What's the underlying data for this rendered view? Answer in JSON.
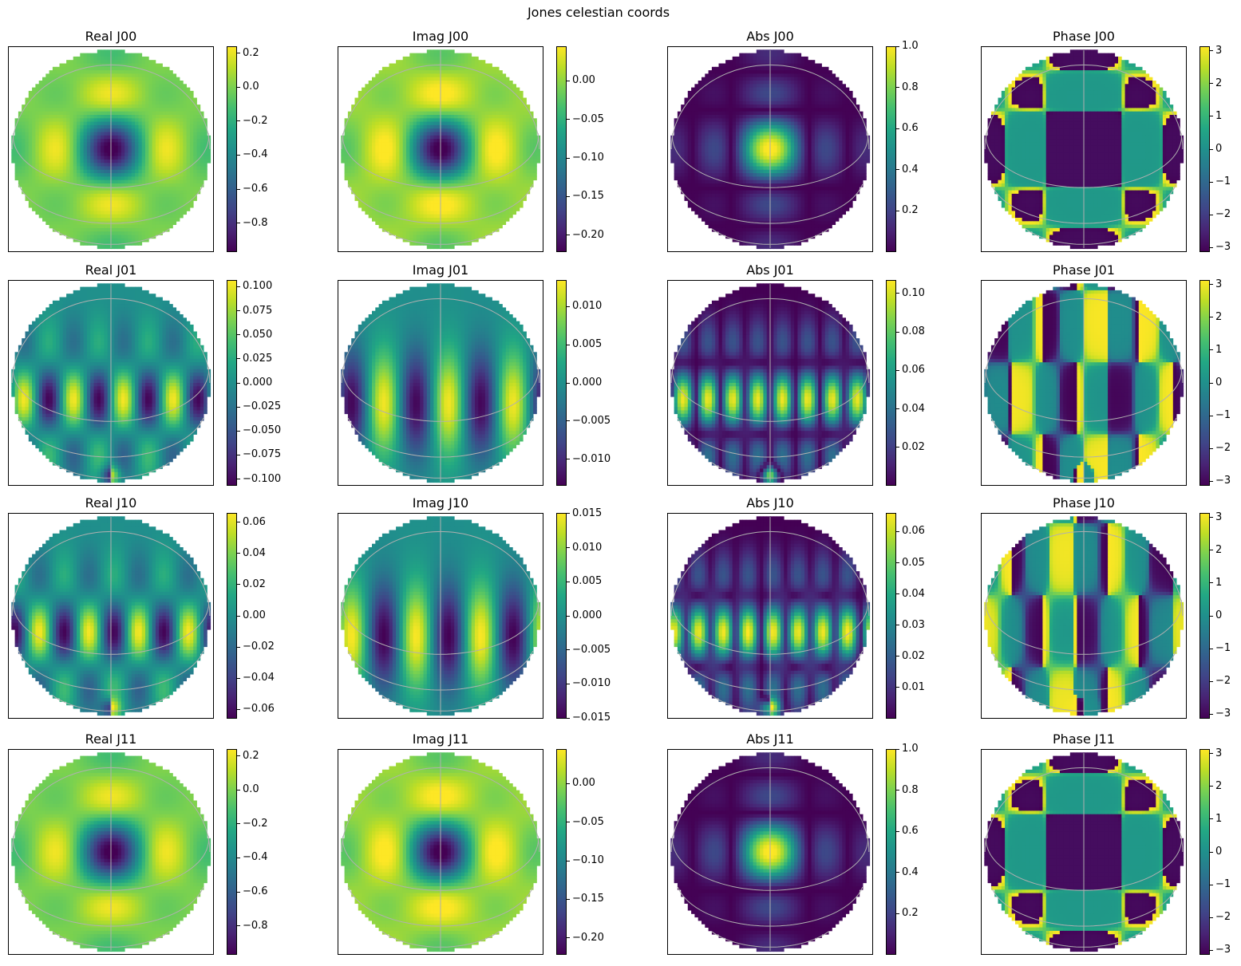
{
  "title": "Jones celestian coords",
  "colormap": "viridis",
  "grid_color": "#b0b0b0",
  "chart_data": [
    {
      "type": "heatmap",
      "title": "Real J00",
      "row": 0,
      "col": 0,
      "component": "real",
      "element": "J00",
      "clim": [
        -0.97,
        0.24
      ],
      "colorbar_ticks": [
        0.2,
        0.0,
        -0.2,
        -0.4,
        -0.6,
        -0.8
      ],
      "colorbar_labels": [
        "0.2",
        "0.0",
        "−0.2",
        "−0.4",
        "−0.6",
        "−0.8"
      ]
    },
    {
      "type": "heatmap",
      "title": "Imag J00",
      "row": 0,
      "col": 1,
      "component": "imag",
      "element": "J00",
      "clim": [
        -0.222,
        0.045
      ],
      "colorbar_ticks": [
        0.0,
        -0.05,
        -0.1,
        -0.15,
        -0.2
      ],
      "colorbar_labels": [
        "0.00",
        "−0.05",
        "−0.10",
        "−0.15",
        "−0.20"
      ]
    },
    {
      "type": "heatmap",
      "title": "Abs J00",
      "row": 0,
      "col": 2,
      "component": "abs",
      "element": "J00",
      "clim": [
        0.0,
        1.0
      ],
      "colorbar_ticks": [
        1.0,
        0.8,
        0.6,
        0.4,
        0.2
      ],
      "colorbar_labels": [
        "1.0",
        "0.8",
        "0.6",
        "0.4",
        "0.2"
      ]
    },
    {
      "type": "heatmap",
      "title": "Phase J00",
      "row": 0,
      "col": 3,
      "component": "phase",
      "element": "J00",
      "clim": [
        -3.14159,
        3.14159
      ],
      "colorbar_ticks": [
        3,
        2,
        1,
        0,
        -1,
        -2,
        -3
      ],
      "colorbar_labels": [
        "3",
        "2",
        "1",
        "0",
        "−1",
        "−2",
        "−3"
      ]
    },
    {
      "type": "heatmap",
      "title": "Real J01",
      "row": 1,
      "col": 0,
      "component": "real",
      "element": "J01",
      "clim": [
        -0.107,
        0.107
      ],
      "colorbar_ticks": [
        0.1,
        0.075,
        0.05,
        0.025,
        0.0,
        -0.025,
        -0.05,
        -0.075,
        -0.1
      ],
      "colorbar_labels": [
        "0.100",
        "0.075",
        "0.050",
        "0.025",
        "0.000",
        "−0.025",
        "−0.050",
        "−0.075",
        "−0.100"
      ]
    },
    {
      "type": "heatmap",
      "title": "Imag J01",
      "row": 1,
      "col": 1,
      "component": "imag",
      "element": "J01",
      "clim": [
        -0.0135,
        0.0135
      ],
      "colorbar_ticks": [
        0.01,
        0.005,
        0.0,
        -0.005,
        -0.01
      ],
      "colorbar_labels": [
        "0.010",
        "0.005",
        "0.000",
        "−0.005",
        "−0.010"
      ]
    },
    {
      "type": "heatmap",
      "title": "Abs J01",
      "row": 1,
      "col": 2,
      "component": "abs",
      "element": "J01",
      "clim": [
        0.0,
        0.107
      ],
      "colorbar_ticks": [
        0.1,
        0.08,
        0.06,
        0.04,
        0.02
      ],
      "colorbar_labels": [
        "0.10",
        "0.08",
        "0.06",
        "0.04",
        "0.02"
      ]
    },
    {
      "type": "heatmap",
      "title": "Phase J01",
      "row": 1,
      "col": 3,
      "component": "phase",
      "element": "J01",
      "clim": [
        -3.14159,
        3.14159
      ],
      "colorbar_ticks": [
        3,
        2,
        1,
        0,
        -1,
        -2,
        -3
      ],
      "colorbar_labels": [
        "3",
        "2",
        "1",
        "0",
        "−1",
        "−2",
        "−3"
      ]
    },
    {
      "type": "heatmap",
      "title": "Real J10",
      "row": 2,
      "col": 0,
      "component": "real",
      "element": "J10",
      "clim": [
        -0.066,
        0.066
      ],
      "colorbar_ticks": [
        0.06,
        0.04,
        0.02,
        0.0,
        -0.02,
        -0.04,
        -0.06
      ],
      "colorbar_labels": [
        "0.06",
        "0.04",
        "0.02",
        "0.00",
        "−0.02",
        "−0.04",
        "−0.06"
      ]
    },
    {
      "type": "heatmap",
      "title": "Imag J10",
      "row": 2,
      "col": 1,
      "component": "imag",
      "element": "J10",
      "clim": [
        -0.0151,
        0.0151
      ],
      "colorbar_ticks": [
        0.015,
        0.01,
        0.005,
        0.0,
        -0.005,
        -0.01,
        -0.015
      ],
      "colorbar_labels": [
        "0.015",
        "0.010",
        "0.005",
        "0.000",
        "−0.005",
        "−0.010",
        "−0.015"
      ]
    },
    {
      "type": "heatmap",
      "title": "Abs J10",
      "row": 2,
      "col": 2,
      "component": "abs",
      "element": "J10",
      "clim": [
        0.0,
        0.066
      ],
      "colorbar_ticks": [
        0.06,
        0.05,
        0.04,
        0.03,
        0.02,
        0.01
      ],
      "colorbar_labels": [
        "0.06",
        "0.05",
        "0.04",
        "0.03",
        "0.02",
        "0.01"
      ]
    },
    {
      "type": "heatmap",
      "title": "Phase J10",
      "row": 2,
      "col": 3,
      "component": "phase",
      "element": "J10",
      "clim": [
        -3.14159,
        3.14159
      ],
      "colorbar_ticks": [
        3,
        2,
        1,
        0,
        -1,
        -2,
        -3
      ],
      "colorbar_labels": [
        "3",
        "2",
        "1",
        "0",
        "−1",
        "−2",
        "−3"
      ]
    },
    {
      "type": "heatmap",
      "title": "Real J11",
      "row": 3,
      "col": 0,
      "component": "real",
      "element": "J11",
      "clim": [
        -0.97,
        0.24
      ],
      "colorbar_ticks": [
        0.2,
        0.0,
        -0.2,
        -0.4,
        -0.6,
        -0.8
      ],
      "colorbar_labels": [
        "0.2",
        "0.0",
        "−0.2",
        "−0.4",
        "−0.6",
        "−0.8"
      ]
    },
    {
      "type": "heatmap",
      "title": "Imag J11",
      "row": 3,
      "col": 1,
      "component": "imag",
      "element": "J11",
      "clim": [
        -0.222,
        0.045
      ],
      "colorbar_ticks": [
        0.0,
        -0.05,
        -0.1,
        -0.15,
        -0.2
      ],
      "colorbar_labels": [
        "0.00",
        "−0.05",
        "−0.10",
        "−0.15",
        "−0.20"
      ]
    },
    {
      "type": "heatmap",
      "title": "Abs J11",
      "row": 3,
      "col": 2,
      "component": "abs",
      "element": "J11",
      "clim": [
        0.0,
        1.0
      ],
      "colorbar_ticks": [
        1.0,
        0.8,
        0.6,
        0.4,
        0.2
      ],
      "colorbar_labels": [
        "1.0",
        "0.8",
        "0.6",
        "0.4",
        "0.2"
      ]
    },
    {
      "type": "heatmap",
      "title": "Phase J11",
      "row": 3,
      "col": 3,
      "component": "phase",
      "element": "J11",
      "clim": [
        -3.14159,
        3.14159
      ],
      "colorbar_ticks": [
        3,
        2,
        1,
        0,
        -1,
        -2,
        -3
      ],
      "colorbar_labels": [
        "3",
        "2",
        "1",
        "0",
        "−1",
        "−2",
        "−3"
      ]
    }
  ]
}
